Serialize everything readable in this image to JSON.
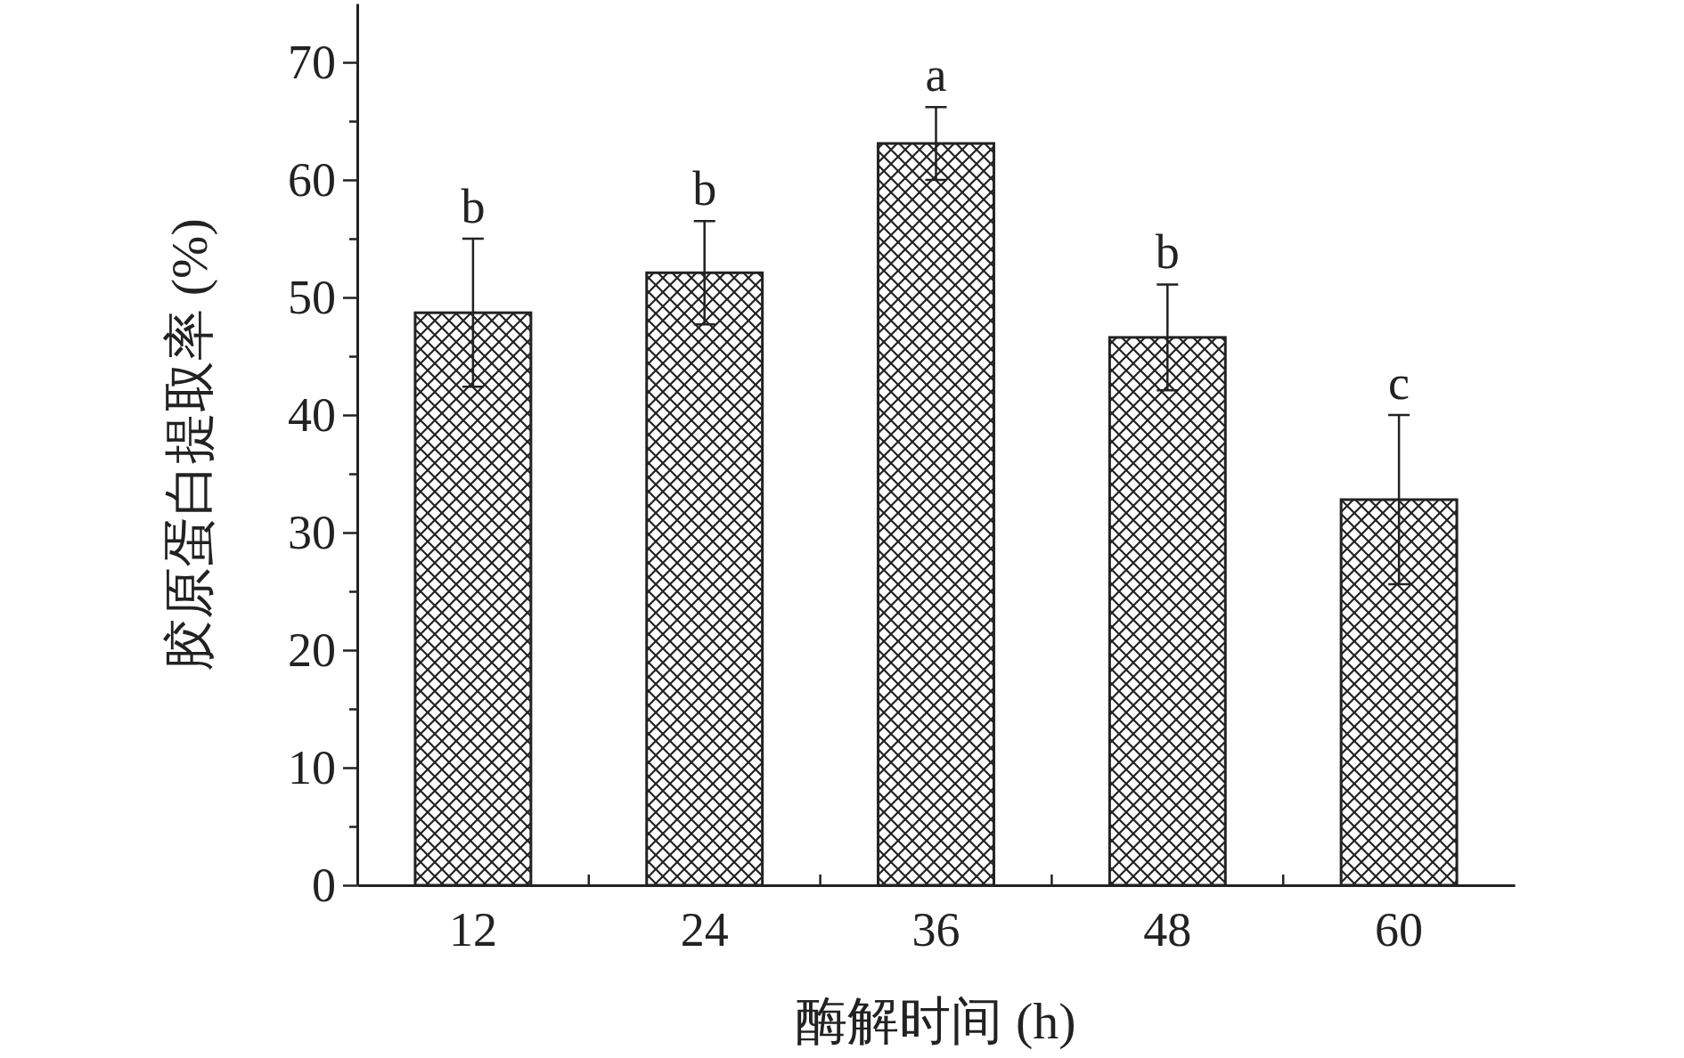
{
  "chart_data": {
    "type": "bar",
    "xlabel": "酶解时间 (h)",
    "ylabel": "胶原蛋白提取率 (%)",
    "categories": [
      "12",
      "24",
      "36",
      "48",
      "60"
    ],
    "values": [
      48.7,
      52.1,
      63.1,
      46.6,
      32.8
    ],
    "errors": [
      6.3,
      4.4,
      3.1,
      4.5,
      7.2
    ],
    "color": "#222222",
    "ylim": [
      0,
      75
    ],
    "yticks": [
      0,
      {
        "value": 5,
        "label": null
      },
      10,
      {
        "value": 15,
        "label": null
      },
      20,
      {
        "value": 25,
        "label": null
      },
      30,
      {
        "value": 35,
        "label": null
      },
      40,
      {
        "value": 45,
        "label": null
      },
      50,
      {
        "value": 55,
        "label": null
      },
      60,
      {
        "value": 65,
        "label": null
      },
      70
    ],
    "annotations": [
      {
        "text": "b",
        "x": "12",
        "y": 55.0
      },
      {
        "text": "b",
        "x": "24",
        "y": 56.5
      },
      {
        "text": "a",
        "x": "36",
        "y": 66.2
      },
      {
        "text": "b",
        "x": "48",
        "y": 51.1
      },
      {
        "text": "c",
        "x": "60",
        "y": 40.0
      }
    ],
    "grid": false
  }
}
